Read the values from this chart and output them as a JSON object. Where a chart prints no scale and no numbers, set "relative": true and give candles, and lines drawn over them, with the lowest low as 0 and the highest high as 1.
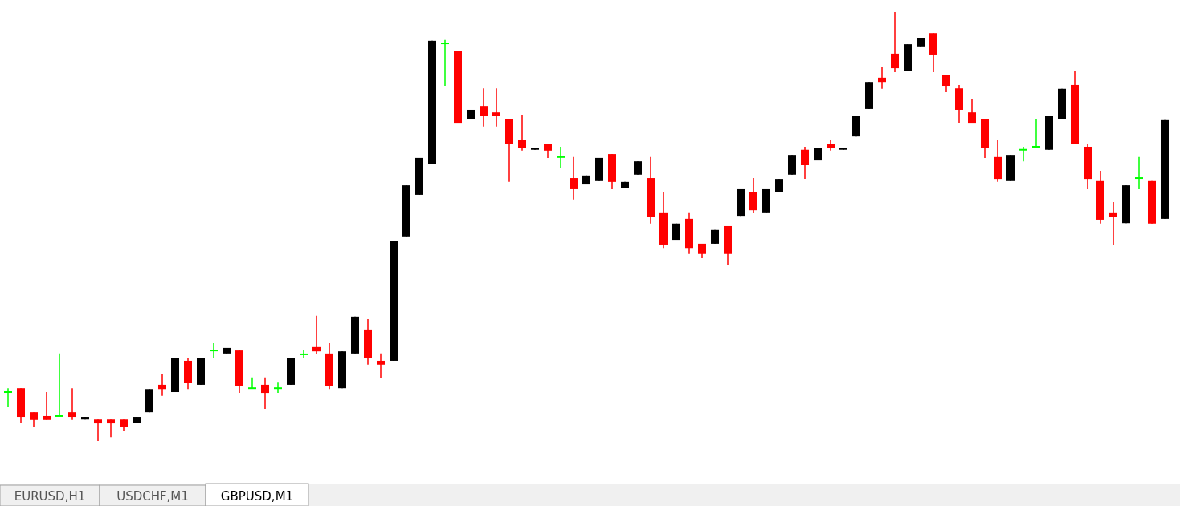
{
  "chart_data": {
    "type": "candlestick",
    "relative": true,
    "categories": [
      null,
      null,
      null,
      null,
      null,
      null,
      null,
      null,
      null,
      null,
      null,
      null,
      null,
      null,
      null,
      null,
      null,
      null,
      null,
      null,
      null,
      null,
      null,
      null,
      null,
      null,
      null,
      null,
      null,
      null,
      null,
      null,
      null,
      null,
      null,
      null,
      null,
      null,
      null,
      null,
      null,
      null,
      null,
      null,
      null,
      null,
      null,
      null,
      null,
      null,
      null,
      null,
      null,
      null,
      null,
      null,
      null,
      null,
      null,
      null,
      null,
      null,
      null,
      null,
      null,
      null,
      null,
      null,
      null,
      null,
      null,
      null,
      null,
      null,
      null,
      null,
      null,
      null,
      null,
      null,
      null,
      null,
      null,
      null,
      null,
      null,
      null,
      null,
      null,
      null,
      null
    ],
    "ohlc": [
      [
        0.114,
        0.123,
        0.08,
        0.114
      ],
      [
        0.123,
        0.123,
        0.041,
        0.056
      ],
      [
        0.067,
        0.067,
        0.032,
        0.049
      ],
      [
        0.058,
        0.114,
        0.049,
        0.049
      ],
      [
        0.058,
        0.204,
        0.058,
        0.058
      ],
      [
        0.067,
        0.123,
        0.049,
        0.056
      ],
      [
        0.05,
        0.056,
        0.05,
        0.056
      ],
      [
        0.05,
        0.05,
        0,
        0.041
      ],
      [
        0.05,
        0.05,
        0.009,
        0.041
      ],
      [
        0.05,
        0.05,
        0.024,
        0.032
      ],
      [
        0.043,
        0.056,
        0.043,
        0.056
      ],
      [
        0.067,
        0.121,
        0.067,
        0.121
      ],
      [
        0.131,
        0.155,
        0.105,
        0.121
      ],
      [
        0.114,
        0.193,
        0.114,
        0.193
      ],
      [
        0.187,
        0.194,
        0.121,
        0.136
      ],
      [
        0.131,
        0.193,
        0.131,
        0.193
      ],
      [
        0.211,
        0.228,
        0.193,
        0.211
      ],
      [
        0.204,
        0.217,
        0.204,
        0.217
      ],
      [
        0.211,
        0.211,
        0.112,
        0.129
      ],
      [
        0.123,
        0.148,
        0.123,
        0.123
      ],
      [
        0.131,
        0.148,
        0.075,
        0.112
      ],
      [
        0.123,
        0.138,
        0.112,
        0.123
      ],
      [
        0.131,
        0.193,
        0.131,
        0.193
      ],
      [
        0.202,
        0.211,
        0.193,
        0.202
      ],
      [
        0.219,
        0.292,
        0.202,
        0.209
      ],
      [
        0.204,
        0.228,
        0.121,
        0.129
      ],
      [
        0.123,
        0.209,
        0.123,
        0.209
      ],
      [
        0.204,
        0.29,
        0.204,
        0.29
      ],
      [
        0.26,
        0.284,
        0.178,
        0.193
      ],
      [
        0.187,
        0.204,
        0.146,
        0.178
      ],
      [
        0.187,
        0.467,
        0.187,
        0.467
      ],
      [
        0.477,
        0.596,
        0.477,
        0.596
      ],
      [
        0.574,
        0.66,
        0.574,
        0.66
      ],
      [
        0.645,
        0.933,
        0.645,
        0.933
      ],
      [
        0.927,
        0.935,
        0.828,
        0.927
      ],
      [
        0.91,
        0.91,
        0.74,
        0.74
      ],
      [
        0.75,
        0.772,
        0.75,
        0.772
      ],
      [
        0.781,
        0.822,
        0.733,
        0.757
      ],
      [
        0.766,
        0.822,
        0.733,
        0.757
      ],
      [
        0.75,
        0.75,
        0.604,
        0.692
      ],
      [
        0.701,
        0.759,
        0.677,
        0.684
      ],
      [
        0.679,
        0.684,
        0.679,
        0.684
      ],
      [
        0.693,
        0.693,
        0.66,
        0.677
      ],
      [
        0.662,
        0.686,
        0.636,
        0.662
      ],
      [
        0.613,
        0.662,
        0.563,
        0.587
      ],
      [
        0.598,
        0.619,
        0.598,
        0.619
      ],
      [
        0.606,
        0.66,
        0.606,
        0.66
      ],
      [
        0.669,
        0.669,
        0.587,
        0.604
      ],
      [
        0.589,
        0.604,
        0.589,
        0.604
      ],
      [
        0.621,
        0.652,
        0.621,
        0.652
      ],
      [
        0.613,
        0.662,
        0.507,
        0.523
      ],
      [
        0.533,
        0.581,
        0.45,
        0.458
      ],
      [
        0.469,
        0.507,
        0.469,
        0.507
      ],
      [
        0.518,
        0.533,
        0.436,
        0.45
      ],
      [
        0.46,
        0.46,
        0.426,
        0.436
      ],
      [
        0.46,
        0.492,
        0.46,
        0.492
      ],
      [
        0.501,
        0.501,
        0.411,
        0.436
      ],
      [
        0.525,
        0.587,
        0.525,
        0.587
      ],
      [
        0.581,
        0.613,
        0.531,
        0.538
      ],
      [
        0.533,
        0.587,
        0.533,
        0.587
      ],
      [
        0.581,
        0.611,
        0.581,
        0.611
      ],
      [
        0.621,
        0.667,
        0.621,
        0.667
      ],
      [
        0.679,
        0.686,
        0.611,
        0.643
      ],
      [
        0.654,
        0.684,
        0.654,
        0.684
      ],
      [
        0.693,
        0.701,
        0.677,
        0.684
      ],
      [
        0.679,
        0.684,
        0.679,
        0.684
      ],
      [
        0.71,
        0.757,
        0.71,
        0.757
      ],
      [
        0.774,
        0.837,
        0.774,
        0.837
      ],
      [
        0.847,
        0.871,
        0.821,
        0.837
      ],
      [
        0.903,
        1,
        0.86,
        0.869
      ],
      [
        0.862,
        0.925,
        0.862,
        0.925
      ],
      [
        0.92,
        0.94,
        0.92,
        0.94
      ],
      [
        0.951,
        0.951,
        0.86,
        0.901
      ],
      [
        0.854,
        0.854,
        0.813,
        0.828
      ],
      [
        0.822,
        0.83,
        0.74,
        0.772
      ],
      [
        0.766,
        0.798,
        0.74,
        0.74
      ],
      [
        0.75,
        0.75,
        0.66,
        0.684
      ],
      [
        0.662,
        0.701,
        0.604,
        0.611
      ],
      [
        0.606,
        0.667,
        0.606,
        0.667
      ],
      [
        0.679,
        0.686,
        0.652,
        0.679
      ],
      [
        0.686,
        0.75,
        0.686,
        0.686
      ],
      [
        0.679,
        0.757,
        0.679,
        0.757
      ],
      [
        0.75,
        0.821,
        0.75,
        0.821
      ],
      [
        0.83,
        0.862,
        0.692,
        0.692
      ],
      [
        0.686,
        0.693,
        0.587,
        0.611
      ],
      [
        0.606,
        0.63,
        0.507,
        0.516
      ],
      [
        0.533,
        0.557,
        0.458,
        0.523
      ],
      [
        0.508,
        0.596,
        0.508,
        0.596
      ],
      [
        0.613,
        0.662,
        0.587,
        0.613
      ],
      [
        0.606,
        0.606,
        0.507,
        0.507
      ],
      [
        0.518,
        0.748,
        0.518,
        0.748
      ]
    ],
    "colors": [
      "#00ff00",
      "#ff0000",
      "#ff0000",
      "#ff0000",
      "#00ff00",
      "#ff0000",
      "#000000",
      "#ff0000",
      "#ff0000",
      "#ff0000",
      "#000000",
      "#000000",
      "#ff0000",
      "#000000",
      "#ff0000",
      "#000000",
      "#00ff00",
      "#000000",
      "#ff0000",
      "#00ff00",
      "#ff0000",
      "#00ff00",
      "#000000",
      "#00ff00",
      "#ff0000",
      "#ff0000",
      "#000000",
      "#000000",
      "#ff0000",
      "#ff0000",
      "#000000",
      "#000000",
      "#000000",
      "#000000",
      "#00ff00",
      "#ff0000",
      "#000000",
      "#ff0000",
      "#ff0000",
      "#ff0000",
      "#ff0000",
      "#000000",
      "#ff0000",
      "#00ff00",
      "#ff0000",
      "#000000",
      "#000000",
      "#ff0000",
      "#000000",
      "#000000",
      "#ff0000",
      "#ff0000",
      "#000000",
      "#ff0000",
      "#ff0000",
      "#000000",
      "#ff0000",
      "#000000",
      "#ff0000",
      "#000000",
      "#000000",
      "#000000",
      "#ff0000",
      "#000000",
      "#ff0000",
      "#000000",
      "#000000",
      "#000000",
      "#ff0000",
      "#ff0000",
      "#000000",
      "#000000",
      "#ff0000",
      "#ff0000",
      "#ff0000",
      "#ff0000",
      "#ff0000",
      "#ff0000",
      "#000000",
      "#00ff00",
      "#00ff00",
      "#000000",
      "#000000",
      "#ff0000",
      "#ff0000",
      "#ff0000",
      "#ff0000",
      "#000000",
      "#00ff00",
      "#ff0000",
      "#000000"
    ],
    "annotations": [
      "EURUSD,H1",
      "USDCHF,M1",
      "GBPUSD,M1"
    ]
  }
}
